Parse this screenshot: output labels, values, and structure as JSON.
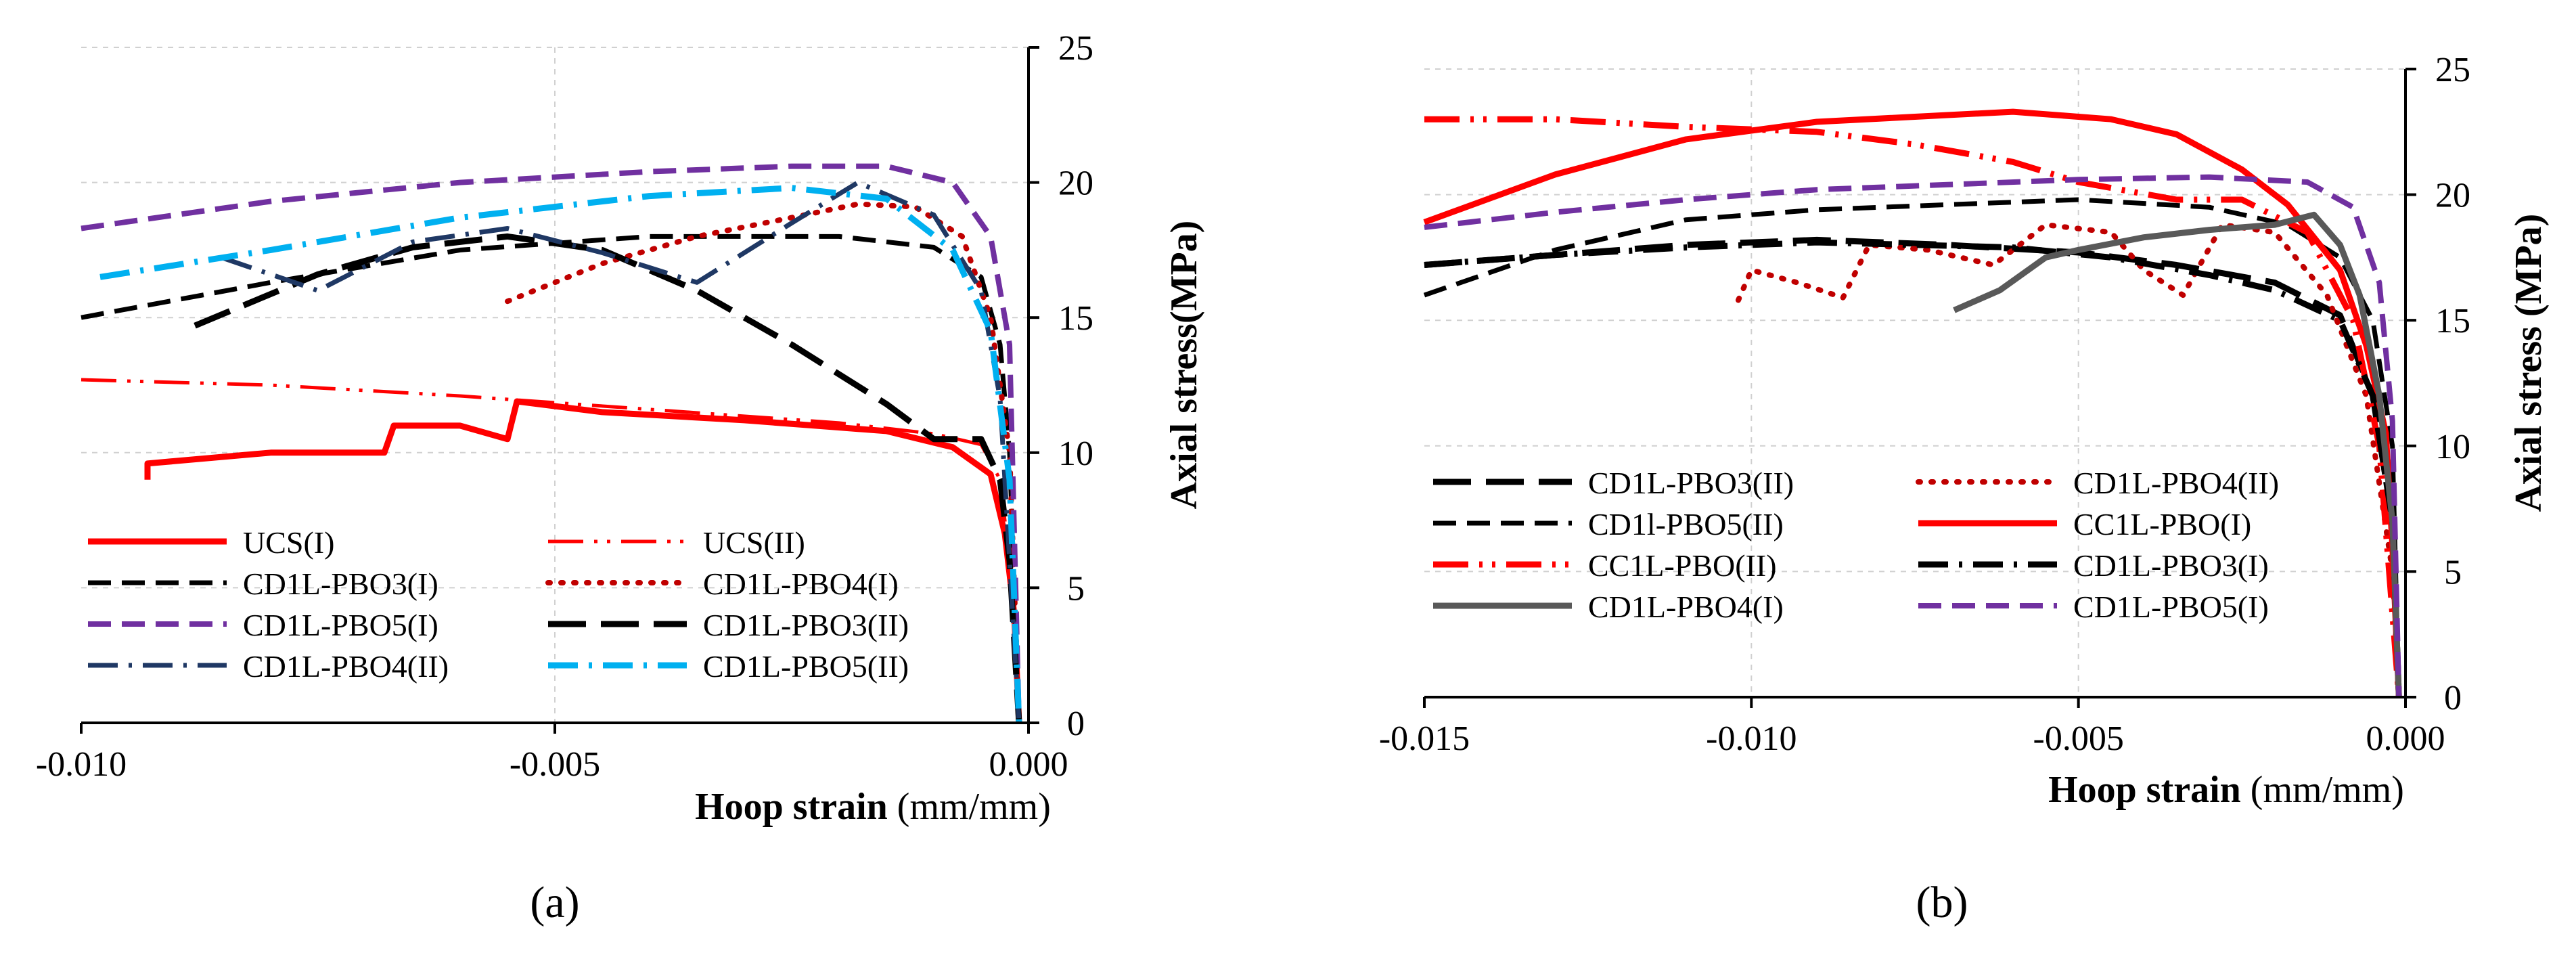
{
  "figure": {
    "panel_labels": [
      "(a)",
      "(b)"
    ]
  },
  "chart_data": [
    {
      "panel": "(a)",
      "type": "line",
      "xlabel_bold": "Hoop strain",
      "xlabel_unit": "(mm/mm)",
      "ylabel": "Axial stress(MPa)",
      "xlim": [
        -0.01,
        0.0
      ],
      "ylim": [
        0,
        25
      ],
      "xticks": [
        -0.01,
        -0.005,
        0.0
      ],
      "xtick_labels": [
        "-0.010",
        "-0.005",
        "0.000"
      ],
      "yticks": [
        0,
        5,
        10,
        15,
        20,
        25
      ],
      "ytick_labels": [
        "0",
        "5",
        "10",
        "15",
        "20",
        "25"
      ],
      "grid": "dashed vertical and horizontal",
      "legend_placement": "bottom-left, two columns",
      "series": [
        {
          "name": "UCS(I)",
          "color": "#ff0000",
          "dash": "solid",
          "width": 9,
          "points": [
            [
              -0.0093,
              9.0
            ],
            [
              -0.0093,
              9.6
            ],
            [
              -0.008,
              10.0
            ],
            [
              -0.0068,
              10.0
            ],
            [
              -0.0067,
              11.0
            ],
            [
              -0.006,
              11.0
            ],
            [
              -0.0055,
              10.5
            ],
            [
              -0.0054,
              11.9
            ],
            [
              -0.0045,
              11.5
            ],
            [
              -0.003,
              11.2
            ],
            [
              -0.0015,
              10.8
            ],
            [
              -0.0008,
              10.2
            ],
            [
              -0.0004,
              9.2
            ],
            [
              -0.00025,
              7.0
            ],
            [
              -0.00015,
              4.0
            ],
            [
              -0.0001,
              0
            ]
          ]
        },
        {
          "name": "UCS(II)",
          "color": "#ff0000",
          "dash": "dashdotdot",
          "width": 5,
          "points": [
            [
              -0.01,
              12.7
            ],
            [
              -0.008,
              12.5
            ],
            [
              -0.006,
              12.1
            ],
            [
              -0.004,
              11.6
            ],
            [
              -0.002,
              11.1
            ],
            [
              -0.001,
              10.7
            ],
            [
              -0.0005,
              10.3
            ],
            [
              -0.0003,
              9.0
            ],
            [
              -0.0002,
              6.0
            ],
            [
              -0.0001,
              0
            ]
          ]
        },
        {
          "name": "CD1L-PBO3(I)",
          "color": "#000000",
          "dash": "dash",
          "width": 7,
          "points": [
            [
              -0.01,
              15.0
            ],
            [
              -0.008,
              16.3
            ],
            [
              -0.006,
              17.5
            ],
            [
              -0.004,
              18.0
            ],
            [
              -0.002,
              18.0
            ],
            [
              -0.001,
              17.6
            ],
            [
              -0.0005,
              16.5
            ],
            [
              -0.0003,
              14.0
            ],
            [
              -0.0002,
              10.0
            ],
            [
              -0.0001,
              0
            ]
          ]
        },
        {
          "name": "CD1L-PBO4(I)",
          "color": "#c00000",
          "dash": "dot",
          "width": 8,
          "points": [
            [
              -0.0055,
              15.6
            ],
            [
              -0.0045,
              17.0
            ],
            [
              -0.0035,
              18.0
            ],
            [
              -0.0025,
              18.7
            ],
            [
              -0.0018,
              19.2
            ],
            [
              -0.0012,
              19.1
            ],
            [
              -0.0007,
              18.0
            ],
            [
              -0.0004,
              15.0
            ],
            [
              -0.0002,
              10.0
            ],
            [
              -0.0001,
              0
            ]
          ]
        },
        {
          "name": "CD1L-PBO5(I)",
          "color": "#7030a0",
          "dash": "dash",
          "width": 8,
          "points": [
            [
              -0.01,
              18.3
            ],
            [
              -0.008,
              19.3
            ],
            [
              -0.006,
              20.0
            ],
            [
              -0.004,
              20.4
            ],
            [
              -0.0025,
              20.6
            ],
            [
              -0.0015,
              20.6
            ],
            [
              -0.0008,
              20.0
            ],
            [
              -0.0004,
              18.0
            ],
            [
              -0.0002,
              14.0
            ],
            [
              -0.0001,
              0
            ]
          ]
        },
        {
          "name": "CD1L-PBO3(II)",
          "color": "#000000",
          "dash": "longdash",
          "width": 9,
          "points": [
            [
              -0.0088,
              14.7
            ],
            [
              -0.0075,
              16.6
            ],
            [
              -0.0065,
              17.6
            ],
            [
              -0.0055,
              18.0
            ],
            [
              -0.0045,
              17.5
            ],
            [
              -0.0035,
              16.0
            ],
            [
              -0.0025,
              14.0
            ],
            [
              -0.0015,
              11.8
            ],
            [
              -0.001,
              10.5
            ],
            [
              -0.0005,
              10.5
            ],
            [
              -0.0003,
              9.0
            ],
            [
              -0.0002,
              6.0
            ],
            [
              -0.0001,
              0
            ]
          ]
        },
        {
          "name": "CD1L-PBO4(II)",
          "color": "#1f3864",
          "dash": "dashdot",
          "width": 7,
          "points": [
            [
              -0.0085,
              17.2
            ],
            [
              -0.0075,
              16.0
            ],
            [
              -0.0065,
              17.8
            ],
            [
              -0.0055,
              18.3
            ],
            [
              -0.0045,
              17.4
            ],
            [
              -0.0035,
              16.3
            ],
            [
              -0.0025,
              18.5
            ],
            [
              -0.0018,
              20.0
            ],
            [
              -0.001,
              18.8
            ],
            [
              -0.0005,
              16.0
            ],
            [
              -0.0003,
              12.0
            ],
            [
              -0.0001,
              0
            ]
          ]
        },
        {
          "name": "CD1L-PBO5(II)",
          "color": "#00b0f0",
          "dash": "dashdot",
          "width": 9,
          "points": [
            [
              -0.0098,
              16.5
            ],
            [
              -0.008,
              17.5
            ],
            [
              -0.006,
              18.7
            ],
            [
              -0.004,
              19.5
            ],
            [
              -0.0025,
              19.8
            ],
            [
              -0.0015,
              19.4
            ],
            [
              -0.0008,
              17.5
            ],
            [
              -0.0004,
              14.5
            ],
            [
              -0.0002,
              9.0
            ],
            [
              -0.0001,
              0
            ]
          ]
        }
      ]
    },
    {
      "panel": "(b)",
      "type": "line",
      "xlabel_bold": "Hoop strain",
      "xlabel_unit": "(mm/mm)",
      "ylabel": "Axial stress (MPa)",
      "xlim": [
        -0.015,
        0.0
      ],
      "ylim": [
        0,
        25
      ],
      "xticks": [
        -0.015,
        -0.01,
        -0.005,
        0.0
      ],
      "xtick_labels": [
        "-0.015",
        "-0.010",
        "-0.005",
        "0.000"
      ],
      "yticks": [
        0,
        5,
        10,
        15,
        20,
        25
      ],
      "ytick_labels": [
        "0",
        "5",
        "10",
        "15",
        "20",
        "25"
      ],
      "grid": "dashed vertical and horizontal",
      "legend_placement": "bottom-left, two columns",
      "series": [
        {
          "name": "CD1L-PBO3(II)",
          "color": "#000000",
          "dash": "longdash",
          "width": 9,
          "points": [
            [
              -0.015,
              17.2
            ],
            [
              -0.013,
              17.6
            ],
            [
              -0.011,
              18.0
            ],
            [
              -0.009,
              18.2
            ],
            [
              -0.007,
              18.0
            ],
            [
              -0.005,
              17.7
            ],
            [
              -0.0035,
              17.2
            ],
            [
              -0.002,
              16.5
            ],
            [
              -0.001,
              15.2
            ],
            [
              -0.0005,
              12.0
            ],
            [
              -0.0002,
              7.0
            ],
            [
              -0.0001,
              0
            ]
          ]
        },
        {
          "name": "CD1L-PBO4(II)",
          "color": "#c00000",
          "dash": "dot",
          "width": 8,
          "points": [
            [
              -0.0102,
              15.8
            ],
            [
              -0.01,
              17.0
            ],
            [
              -0.0093,
              16.5
            ],
            [
              -0.0086,
              15.9
            ],
            [
              -0.0082,
              18.0
            ],
            [
              -0.0073,
              17.8
            ],
            [
              -0.0063,
              17.2
            ],
            [
              -0.0055,
              18.8
            ],
            [
              -0.0045,
              18.5
            ],
            [
              -0.004,
              17.0
            ],
            [
              -0.0034,
              16.0
            ],
            [
              -0.0028,
              18.8
            ],
            [
              -0.002,
              18.5
            ],
            [
              -0.0012,
              16.0
            ],
            [
              -0.0006,
              12.0
            ],
            [
              -0.0002,
              5.0
            ],
            [
              -0.0001,
              0
            ]
          ]
        },
        {
          "name": "CD1l-PBO5(II)",
          "color": "#000000",
          "dash": "dash",
          "width": 7,
          "points": [
            [
              -0.015,
              16.0
            ],
            [
              -0.013,
              17.8
            ],
            [
              -0.011,
              19.0
            ],
            [
              -0.009,
              19.4
            ],
            [
              -0.007,
              19.6
            ],
            [
              -0.005,
              19.8
            ],
            [
              -0.003,
              19.5
            ],
            [
              -0.0018,
              18.8
            ],
            [
              -0.001,
              17.5
            ],
            [
              -0.0005,
              15.0
            ],
            [
              -0.0002,
              10.0
            ],
            [
              -0.0001,
              0
            ]
          ]
        },
        {
          "name": "CC1L-PBO(I)",
          "color": "#ff0000",
          "dash": "solid",
          "width": 9,
          "points": [
            [
              -0.015,
              18.9
            ],
            [
              -0.013,
              20.8
            ],
            [
              -0.011,
              22.2
            ],
            [
              -0.009,
              22.9
            ],
            [
              -0.0075,
              23.1
            ],
            [
              -0.006,
              23.3
            ],
            [
              -0.0045,
              23.0
            ],
            [
              -0.0035,
              22.4
            ],
            [
              -0.0025,
              21.0
            ],
            [
              -0.0018,
              19.6
            ],
            [
              -0.001,
              17.0
            ],
            [
              -0.0006,
              14.0
            ],
            [
              -0.0003,
              10.5
            ],
            [
              -0.0002,
              6.0
            ],
            [
              -0.0001,
              0
            ]
          ]
        },
        {
          "name": "CC1L-PBO(II)",
          "color": "#ff0000",
          "dash": "dashdotdot",
          "width": 9,
          "points": [
            [
              -0.015,
              23.0
            ],
            [
              -0.013,
              23.0
            ],
            [
              -0.011,
              22.7
            ],
            [
              -0.009,
              22.5
            ],
            [
              -0.0075,
              22.0
            ],
            [
              -0.006,
              21.3
            ],
            [
              -0.005,
              20.5
            ],
            [
              -0.0035,
              19.8
            ],
            [
              -0.0025,
              19.8
            ],
            [
              -0.0015,
              18.5
            ],
            [
              -0.0008,
              15.0
            ],
            [
              -0.0004,
              10.0
            ],
            [
              -0.0001,
              0
            ]
          ]
        },
        {
          "name": "CD1L-PBO3(I)",
          "color": "#000000",
          "dash": "dashdot",
          "width": 9,
          "points": [
            [
              -0.015,
              17.2
            ],
            [
              -0.013,
              17.6
            ],
            [
              -0.011,
              17.9
            ],
            [
              -0.009,
              18.1
            ],
            [
              -0.0075,
              18.0
            ],
            [
              -0.006,
              17.9
            ],
            [
              -0.0045,
              17.5
            ],
            [
              -0.003,
              16.8
            ],
            [
              -0.002,
              16.2
            ],
            [
              -0.001,
              15.0
            ],
            [
              -0.0005,
              12.0
            ],
            [
              -0.0002,
              7.0
            ],
            [
              -0.0001,
              0
            ]
          ]
        },
        {
          "name": "CD1L-PBO4(I)",
          "color": "#595959",
          "dash": "solid",
          "width": 9,
          "points": [
            [
              -0.0069,
              15.4
            ],
            [
              -0.0062,
              16.2
            ],
            [
              -0.0055,
              17.5
            ],
            [
              -0.005,
              17.8
            ],
            [
              -0.004,
              18.3
            ],
            [
              -0.003,
              18.6
            ],
            [
              -0.002,
              18.8
            ],
            [
              -0.0014,
              19.2
            ],
            [
              -0.001,
              18.0
            ],
            [
              -0.0007,
              16.0
            ],
            [
              -0.0004,
              12.0
            ],
            [
              -0.0002,
              7.0
            ],
            [
              -0.0001,
              0
            ]
          ]
        },
        {
          "name": "CD1L-PBO5(I)",
          "color": "#7030a0",
          "dash": "dash",
          "width": 8,
          "points": [
            [
              -0.015,
              18.7
            ],
            [
              -0.013,
              19.3
            ],
            [
              -0.011,
              19.8
            ],
            [
              -0.009,
              20.2
            ],
            [
              -0.007,
              20.4
            ],
            [
              -0.005,
              20.6
            ],
            [
              -0.003,
              20.7
            ],
            [
              -0.0015,
              20.5
            ],
            [
              -0.0008,
              19.5
            ],
            [
              -0.0004,
              16.5
            ],
            [
              -0.0002,
              11.0
            ],
            [
              -0.0001,
              0
            ]
          ]
        }
      ]
    }
  ]
}
